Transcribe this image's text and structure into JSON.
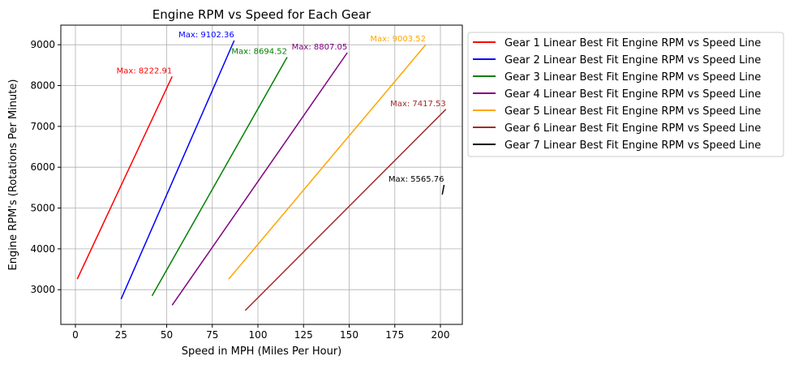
{
  "chart_data": {
    "type": "line",
    "title": "Engine RPM vs Speed for Each Gear",
    "xlabel": "Speed in MPH (Miles Per Hour)",
    "ylabel": "Engine RPM's (Rotations Per Minute)",
    "xlim": [
      -8,
      212
    ],
    "ylim": [
      2150,
      9480
    ],
    "xticks": [
      0,
      25,
      50,
      75,
      100,
      125,
      150,
      175,
      200
    ],
    "yticks": [
      3000,
      4000,
      5000,
      6000,
      7000,
      8000,
      9000
    ],
    "grid": true,
    "legend_position": "outside-right",
    "series": [
      {
        "name": "Gear 1 Linear Best Fit Engine RPM vs Speed Line",
        "color": "#ff0000",
        "x": [
          1,
          53
        ],
        "y": [
          3260,
          8222.91
        ],
        "annotation": "Max: 8222.91"
      },
      {
        "name": "Gear 2 Linear Best Fit Engine RPM vs Speed Line",
        "color": "#0000ff",
        "x": [
          25,
          87
        ],
        "y": [
          2770,
          9102.36
        ],
        "annotation": "Max: 9102.36"
      },
      {
        "name": "Gear 3 Linear Best Fit Engine RPM vs Speed Line",
        "color": "#008000",
        "x": [
          42,
          116
        ],
        "y": [
          2850,
          8694.52
        ],
        "annotation": "Max: 8694.52"
      },
      {
        "name": "Gear 4 Linear Best Fit Engine RPM vs Speed Line",
        "color": "#800080",
        "x": [
          53,
          149
        ],
        "y": [
          2620,
          8807.05
        ],
        "annotation": "Max: 8807.05"
      },
      {
        "name": "Gear 5 Linear Best Fit Engine RPM vs Speed Line",
        "color": "#ffa500",
        "x": [
          84,
          192
        ],
        "y": [
          3260,
          9003.52
        ],
        "annotation": "Max: 9003.52"
      },
      {
        "name": "Gear 6 Linear Best Fit Engine RPM vs Speed Line",
        "color": "#a52a2a",
        "x": [
          93,
          203
        ],
        "y": [
          2490,
          7417.53
        ],
        "annotation": "Max: 7417.53"
      },
      {
        "name": "Gear 7 Linear Best Fit Engine RPM vs Speed Line",
        "color": "#000000",
        "x": [
          201,
          202
        ],
        "y": [
          5330,
          5565.76
        ],
        "annotation": "Max: 5565.76"
      }
    ]
  }
}
